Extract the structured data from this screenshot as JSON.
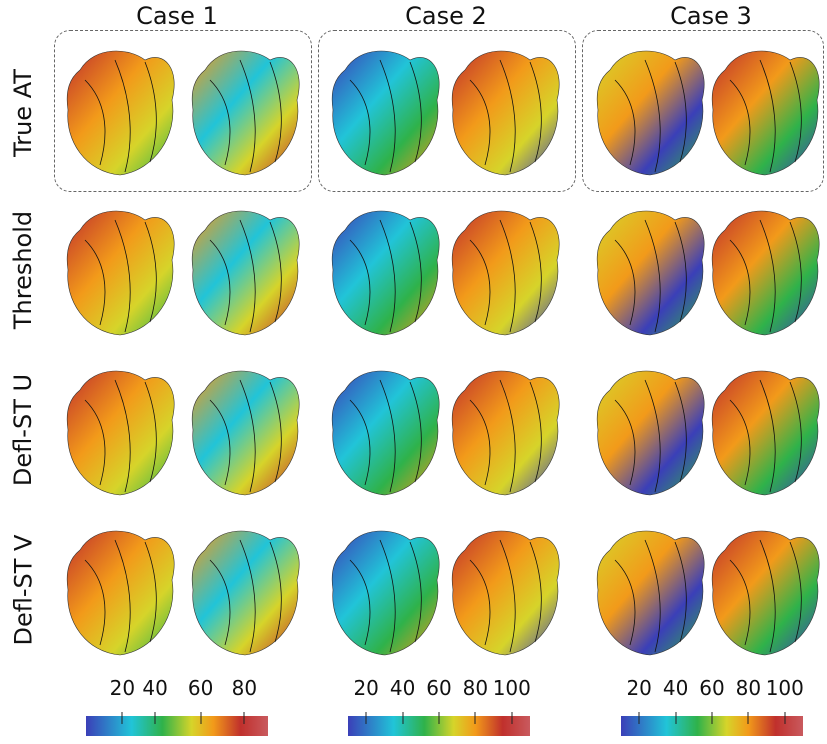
{
  "columns": [
    "Case 1",
    "Case 2",
    "Case 3"
  ],
  "rows": [
    "True AT",
    "Threshold",
    "Defl-ST U",
    "Defl-ST V"
  ],
  "colorbars": [
    {
      "ticks": [
        "20",
        "40",
        "60",
        "80"
      ]
    },
    {
      "ticks": [
        "20",
        "40",
        "60",
        "80",
        "100"
      ]
    },
    {
      "ticks": [
        "20",
        "40",
        "60",
        "80",
        "100"
      ]
    }
  ],
  "colormap": [
    "#3b3fb8",
    "#21c4d8",
    "#2fb24a",
    "#d6d42a",
    "#f29a1a",
    "#c0302c",
    "#c95a5e"
  ]
}
